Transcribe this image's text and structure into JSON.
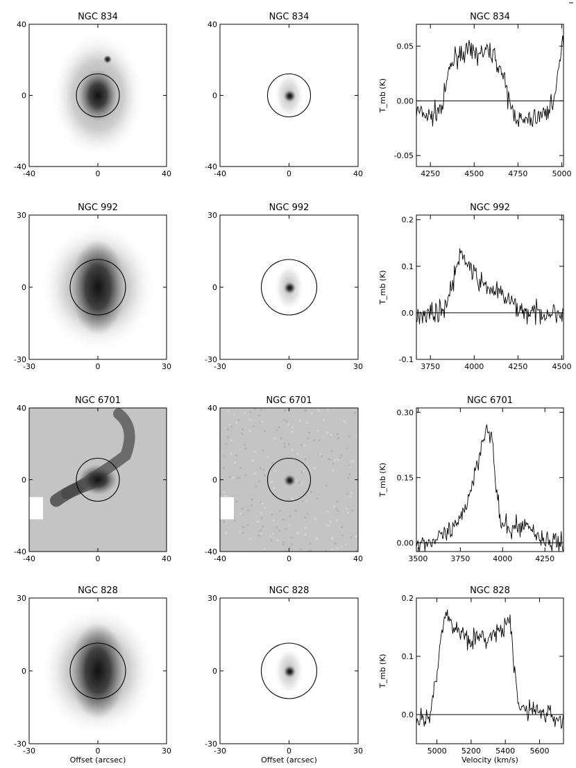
{
  "figure": {
    "panels": [
      {
        "galaxy": "NGC 834",
        "left": {
          "title": "NGC 834",
          "ticks": [
            "-40",
            "0",
            "40"
          ],
          "style": "spiral-faint"
        },
        "middle": {
          "title": "NGC 834",
          "ticks": [
            "-40",
            "0",
            "40"
          ],
          "style": "compact-faint"
        },
        "spectrum": {
          "title": "NGC 834",
          "ylabel": "T_mb (K)",
          "yticks": [
            "0.05",
            "0.00",
            "-0.05"
          ],
          "xticks": [
            "4250",
            "4500",
            "4750",
            "5000"
          ]
        }
      },
      {
        "galaxy": "NGC 992",
        "left": {
          "title": "NGC 992",
          "ticks": [
            "-30",
            "0",
            "30"
          ],
          "style": "spiral-bright"
        },
        "middle": {
          "title": "NGC 992",
          "ticks": [
            "-30",
            "0",
            "30"
          ],
          "style": "compact-faint"
        },
        "spectrum": {
          "title": "NGC 992",
          "ylabel": "T_mb (K)",
          "yticks": [
            "0.2",
            "0.1",
            "0.0",
            "-0.1"
          ],
          "xticks": [
            "3750",
            "4000",
            "4250",
            "4500"
          ]
        }
      },
      {
        "galaxy": "NGC 6701",
        "left": {
          "title": "NGC 6701",
          "ticks": [
            "-40",
            "0",
            "40"
          ],
          "style": "gray-background"
        },
        "middle": {
          "title": "NGC 6701",
          "ticks": [
            "-40",
            "0",
            "40"
          ],
          "style": "gray-background"
        },
        "spectrum": {
          "title": "NGC 6701",
          "ylabel": "T_mb (K)",
          "yticks": [
            "0.30",
            "0.15",
            "0.00"
          ],
          "xticks": [
            "3500",
            "3750",
            "4000",
            "4250"
          ]
        }
      },
      {
        "galaxy": "NGC 828",
        "left": {
          "title": "NGC 828",
          "ticks": [
            "-30",
            "0",
            "30"
          ],
          "xlabel": "Offset (arcsec)",
          "style": "spiral-bright"
        },
        "middle": {
          "title": "NGC 828",
          "ticks": [
            "-30",
            "0",
            "30"
          ],
          "xlabel": "Offset (arcsec)",
          "style": "compact-faint"
        },
        "spectrum": {
          "title": "NGC 828",
          "ylabel": "T_mb (K)",
          "xlabel": "Velocity (km/s)",
          "yticks": [
            "0.2",
            "0.1",
            "0.0"
          ],
          "xticks": [
            "5000",
            "5200",
            "5400",
            "5600"
          ]
        }
      }
    ]
  },
  "chart_data": [
    {
      "type": "line",
      "title": "NGC 834",
      "xlabel": "",
      "ylabel": "T_mb (K)",
      "xlim": [
        4170,
        5010
      ],
      "ylim": [
        -0.06,
        0.07
      ],
      "series": [
        {
          "values": [
            [
              4180,
              -0.01
            ],
            [
              4250,
              -0.015
            ],
            [
              4320,
              -0.005
            ],
            [
              4360,
              0.03
            ],
            [
              4400,
              0.042
            ],
            [
              4450,
              0.045
            ],
            [
              4500,
              0.043
            ],
            [
              4550,
              0.044
            ],
            [
              4600,
              0.045
            ],
            [
              4650,
              0.03
            ],
            [
              4690,
              0.005
            ],
            [
              4720,
              -0.01
            ],
            [
              4780,
              -0.02
            ],
            [
              4850,
              -0.015
            ],
            [
              4920,
              -0.01
            ],
            [
              4970,
              0.01
            ],
            [
              5000,
              0.05
            ]
          ]
        }
      ]
    },
    {
      "type": "line",
      "title": "NGC 992",
      "xlabel": "",
      "ylabel": "T_mb (K)",
      "xlim": [
        3670,
        4510
      ],
      "ylim": [
        -0.1,
        0.21
      ],
      "series": [
        {
          "values": [
            [
              3680,
              0.0
            ],
            [
              3750,
              0.0
            ],
            [
              3820,
              0.005
            ],
            [
              3860,
              0.04
            ],
            [
              3900,
              0.1
            ],
            [
              3930,
              0.125
            ],
            [
              3960,
              0.11
            ],
            [
              4000,
              0.08
            ],
            [
              4050,
              0.06
            ],
            [
              4100,
              0.05
            ],
            [
              4150,
              0.04
            ],
            [
              4200,
              0.025
            ],
            [
              4250,
              0.01
            ],
            [
              4300,
              0.0
            ],
            [
              4400,
              0.0
            ],
            [
              4500,
              0.0
            ]
          ]
        }
      ]
    },
    {
      "type": "line",
      "title": "NGC 6701",
      "xlabel": "",
      "ylabel": "T_mb (K)",
      "xlim": [
        3490,
        4360
      ],
      "ylim": [
        -0.02,
        0.31
      ],
      "series": [
        {
          "values": [
            [
              3500,
              0.0
            ],
            [
              3600,
              0.005
            ],
            [
              3700,
              0.025
            ],
            [
              3750,
              0.05
            ],
            [
              3800,
              0.11
            ],
            [
              3850,
              0.18
            ],
            [
              3880,
              0.24
            ],
            [
              3910,
              0.27
            ],
            [
              3940,
              0.23
            ],
            [
              3960,
              0.13
            ],
            [
              3990,
              0.04
            ],
            [
              4050,
              0.03
            ],
            [
              4100,
              0.04
            ],
            [
              4150,
              0.04
            ],
            [
              4200,
              0.02
            ],
            [
              4250,
              0.005
            ],
            [
              4350,
              0.0
            ]
          ]
        }
      ]
    },
    {
      "type": "line",
      "title": "NGC 828",
      "xlabel": "Velocity (km/s)",
      "ylabel": "T_mb (K)",
      "xlim": [
        4880,
        5740
      ],
      "ylim": [
        -0.05,
        0.2
      ],
      "series": [
        {
          "values": [
            [
              4890,
              -0.01
            ],
            [
              4960,
              -0.005
            ],
            [
              5000,
              0.08
            ],
            [
              5030,
              0.15
            ],
            [
              5060,
              0.17
            ],
            [
              5100,
              0.15
            ],
            [
              5150,
              0.14
            ],
            [
              5200,
              0.13
            ],
            [
              5250,
              0.13
            ],
            [
              5300,
              0.13
            ],
            [
              5350,
              0.14
            ],
            [
              5400,
              0.15
            ],
            [
              5430,
              0.16
            ],
            [
              5450,
              0.08
            ],
            [
              5480,
              0.01
            ],
            [
              5550,
              0.01
            ],
            [
              5650,
              0.0
            ],
            [
              5730,
              -0.01
            ]
          ]
        }
      ]
    }
  ]
}
